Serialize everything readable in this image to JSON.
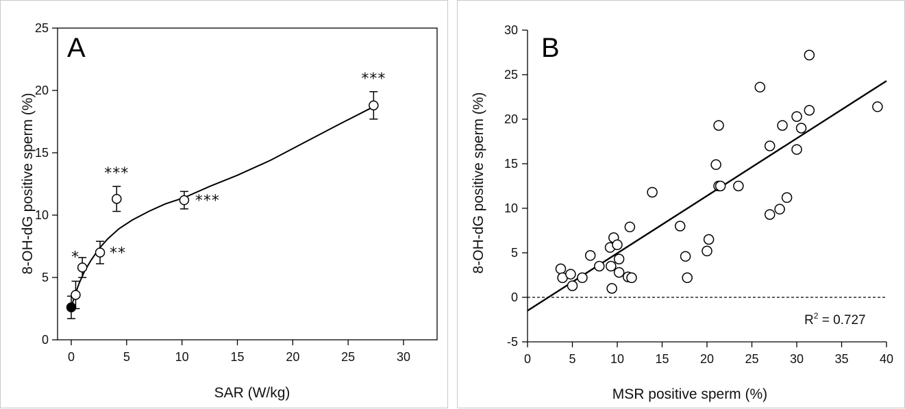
{
  "chart_data": [
    {
      "type": "scatter",
      "panel_label": "A",
      "xlabel": "SAR (W/kg)",
      "ylabel": "8-OH-dG positive sperm  (%)",
      "xlim": [
        -1,
        33
      ],
      "ylim": [
        0,
        25
      ],
      "xticks": [
        0,
        5,
        10,
        15,
        20,
        25,
        30
      ],
      "yticks": [
        0,
        5,
        10,
        15,
        20,
        25
      ],
      "grid": false,
      "series": [
        {
          "marker": "filled-circle",
          "points": [
            {
              "x": 0,
              "y": 2.6,
              "err": 0.9
            }
          ]
        },
        {
          "marker": "open-circle",
          "points": [
            {
              "x": 0.4,
              "y": 3.6,
              "err": 1.1,
              "label": ""
            },
            {
              "x": 1.0,
              "y": 5.8,
              "err": 0.8,
              "label": "*"
            },
            {
              "x": 2.6,
              "y": 7.0,
              "err": 0.9,
              "label": "**"
            },
            {
              "x": 4.1,
              "y": 11.3,
              "err": 1.0,
              "label": "***"
            },
            {
              "x": 10.2,
              "y": 11.2,
              "err": 0.7,
              "label": "***"
            },
            {
              "x": 27.3,
              "y": 18.8,
              "err": 1.1,
              "label": "***"
            }
          ]
        }
      ],
      "curve": [
        [
          0,
          2.6
        ],
        [
          0.3,
          3.5
        ],
        [
          0.7,
          4.5
        ],
        [
          1.2,
          5.5
        ],
        [
          1.8,
          6.4
        ],
        [
          2.5,
          7.3
        ],
        [
          3.3,
          8.1
        ],
        [
          4.3,
          8.9
        ],
        [
          5.5,
          9.6
        ],
        [
          7.0,
          10.3
        ],
        [
          8.5,
          10.9
        ],
        [
          10.2,
          11.4
        ],
        [
          12.5,
          12.3
        ],
        [
          15,
          13.2
        ],
        [
          18,
          14.4
        ],
        [
          21,
          15.8
        ],
        [
          24,
          17.2
        ],
        [
          27.3,
          18.7
        ]
      ],
      "annotations": [
        "*",
        "**",
        "***",
        "***",
        "***"
      ]
    },
    {
      "type": "scatter",
      "panel_label": "B",
      "xlabel": "MSR positive sperm (%)",
      "ylabel": "8-OH-dG positive sperm (%)",
      "xlim": [
        0,
        40
      ],
      "ylim": [
        -5,
        30
      ],
      "xticks": [
        0,
        5,
        10,
        15,
        20,
        25,
        30,
        35,
        40
      ],
      "yticks": [
        -5,
        0,
        5,
        10,
        15,
        20,
        25,
        30
      ],
      "grid": false,
      "zero_line": {
        "y": 0,
        "style": "dashed"
      },
      "fit_line": {
        "x": [
          0,
          40
        ],
        "y": [
          -1.5,
          24.3
        ]
      },
      "r2_text": {
        "prefix": "R",
        "sup": "2",
        "value": " = 0.727"
      },
      "points": [
        [
          3.7,
          3.2
        ],
        [
          3.9,
          2.2
        ],
        [
          4.8,
          2.6
        ],
        [
          5.0,
          1.3
        ],
        [
          6.1,
          2.2
        ],
        [
          7.0,
          4.7
        ],
        [
          8.0,
          3.5
        ],
        [
          9.2,
          5.6
        ],
        [
          9.6,
          6.7
        ],
        [
          9.3,
          3.5
        ],
        [
          9.4,
          1.0
        ],
        [
          10.0,
          5.9
        ],
        [
          10.2,
          4.3
        ],
        [
          10.2,
          2.8
        ],
        [
          11.2,
          2.3
        ],
        [
          11.4,
          7.9
        ],
        [
          11.6,
          2.2
        ],
        [
          13.9,
          11.8
        ],
        [
          17.0,
          8.0
        ],
        [
          17.6,
          4.6
        ],
        [
          17.8,
          2.2
        ],
        [
          20.0,
          5.2
        ],
        [
          20.2,
          6.5
        ],
        [
          21.0,
          14.9
        ],
        [
          21.3,
          19.3
        ],
        [
          21.3,
          12.5
        ],
        [
          21.5,
          12.5
        ],
        [
          23.5,
          12.5
        ],
        [
          25.9,
          23.6
        ],
        [
          27.0,
          17.0
        ],
        [
          27.0,
          9.3
        ],
        [
          28.1,
          9.9
        ],
        [
          28.4,
          19.3
        ],
        [
          28.9,
          11.2
        ],
        [
          30.0,
          20.3
        ],
        [
          30.0,
          16.6
        ],
        [
          30.5,
          19.0
        ],
        [
          31.4,
          21.0
        ],
        [
          31.4,
          27.2
        ],
        [
          39.0,
          21.4
        ]
      ]
    }
  ]
}
